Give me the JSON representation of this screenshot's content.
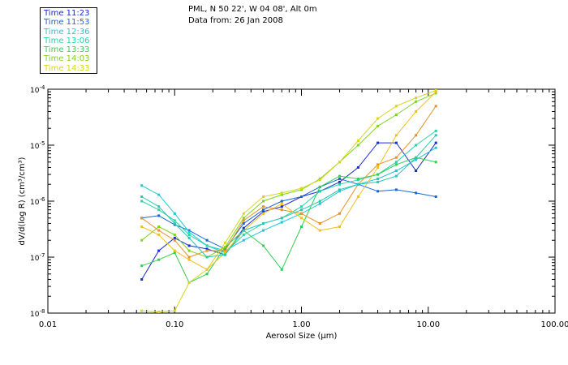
{
  "header": {
    "line1": "PML, N 50 22', W 04 08', Alt 0m",
    "line2": "Data from: 26 Jan 2008"
  },
  "legend": [
    {
      "label": "Time 11:23",
      "color": "#1a2ad4"
    },
    {
      "label": "Time 11:53",
      "color": "#1a66d8"
    },
    {
      "label": "Time 12:36",
      "color": "#1ec8d6"
    },
    {
      "label": "Time 13:06",
      "color": "#22d6a6"
    },
    {
      "label": "Time 13:33",
      "color": "#2fcf52"
    },
    {
      "label": "Time 14:03",
      "color": "#7fd41e"
    },
    {
      "label": "Time 14:33",
      "color": "#d6d61e"
    }
  ],
  "chart_data": {
    "type": "line",
    "x_scale": "log",
    "y_scale": "log",
    "xlabel": "Aerosol Size (μm)",
    "ylabel": "dV/d(log R) (cm³/cm³)",
    "xlim": [
      0.01,
      100
    ],
    "ylim": [
      1e-08,
      0.0001
    ],
    "x_tick_labels": [
      "0.01",
      "0.10",
      "1.00",
      "10.00",
      "100.00"
    ],
    "y_tick_labels": [
      {
        "base": "10",
        "exp": "-8"
      },
      {
        "base": "10",
        "exp": "-7"
      },
      {
        "base": "10",
        "exp": "-6"
      },
      {
        "base": "10",
        "exp": "-5"
      },
      {
        "base": "10",
        "exp": "-4"
      }
    ],
    "x": [
      0.055,
      0.075,
      0.1,
      0.13,
      0.18,
      0.25,
      0.35,
      0.5,
      0.7,
      1.0,
      1.4,
      2.0,
      2.8,
      4.0,
      5.6,
      8.0,
      11.5
    ],
    "series": [
      {
        "name": "Time 11:23",
        "color": "#1a2ad4",
        "values": [
          4e-08,
          1.3e-07,
          2.2e-07,
          1.6e-07,
          1.4e-07,
          1.1e-07,
          3.3e-07,
          6.5e-07,
          8e-07,
          1.2e-06,
          1.5e-06,
          2.2e-06,
          4e-06,
          1.1e-05,
          1.1e-05,
          3.5e-06,
          1.1e-05
        ]
      },
      {
        "name": "Time 11:53",
        "color": "#1a66d8",
        "values": [
          5e-07,
          5.5e-07,
          3.8e-07,
          3e-07,
          2e-07,
          1.4e-07,
          4e-07,
          7e-07,
          1e-06,
          1.2e-06,
          1.8e-06,
          2.5e-06,
          2e-06,
          1.5e-06,
          1.6e-06,
          1.4e-06,
          1.2e-06
        ]
      },
      {
        "name": "Time 12:36",
        "color": "#1ec8d6",
        "values": [
          1.9e-06,
          1.3e-06,
          6e-07,
          2.8e-07,
          1.6e-07,
          1.3e-07,
          2e-07,
          3e-07,
          4.2e-07,
          6e-07,
          9e-07,
          1.5e-06,
          2e-06,
          2.5e-06,
          3.5e-06,
          5.5e-06,
          9e-06
        ]
      },
      {
        "name": "Time 13:06",
        "color": "#22d6a6",
        "values": [
          1e-06,
          7e-07,
          4.5e-07,
          2.5e-07,
          1.6e-07,
          1.2e-07,
          2.5e-07,
          4e-07,
          5e-07,
          8e-07,
          1.5e-06,
          2e-06,
          2.4e-06,
          3e-06,
          5e-06,
          1e-05,
          1.8e-05
        ]
      },
      {
        "name": "Time 13:33",
        "color": "#2fcf52",
        "values": [
          7e-08,
          9e-08,
          1.2e-07,
          3.5e-08,
          5e-08,
          1.5e-07,
          3e-07,
          1.6e-07,
          6e-08,
          3.5e-07,
          1.8e-06,
          2.8e-06,
          2.5e-06,
          3e-06,
          4.5e-06,
          6e-06,
          5e-06
        ]
      },
      {
        "name": "Time 14:03",
        "color": "#7fd41e",
        "values": [
          2e-07,
          3.5e-07,
          2.5e-07,
          1.3e-07,
          1e-07,
          1.5e-07,
          5e-07,
          1e-06,
          1.3e-06,
          1.6e-06,
          2.5e-06,
          5e-06,
          1e-05,
          2.2e-05,
          3.5e-05,
          6e-05,
          8.5e-05
        ]
      },
      {
        "name": "Time 14:33",
        "color": "#d6d61e",
        "values": [
          1.1e-08,
          1.05e-08,
          1.1e-08,
          3.5e-08,
          6e-08,
          1.8e-07,
          6e-07,
          1.2e-06,
          1.4e-06,
          1.7e-06,
          2.4e-06,
          5e-06,
          1.2e-05,
          3e-05,
          5e-05,
          7e-05,
          9.5e-05
        ]
      },
      {
        "name": "",
        "color": "#e8902a",
        "values": [
          5e-07,
          3e-07,
          2e-07,
          1e-07,
          1.3e-07,
          1.3e-07,
          4.5e-07,
          8e-07,
          7e-07,
          6e-07,
          4e-07,
          6e-07,
          2e-06,
          4.5e-06,
          6e-06,
          1.5e-05,
          5e-05
        ]
      },
      {
        "name": "",
        "color": "#f0c020",
        "values": [
          3.5e-07,
          2.5e-07,
          1.3e-07,
          9e-08,
          6e-08,
          1.2e-07,
          3e-07,
          6e-07,
          9e-07,
          5e-07,
          3e-07,
          3.5e-07,
          1.2e-06,
          4e-06,
          1.5e-05,
          4e-05,
          9e-05
        ]
      },
      {
        "name": "",
        "color": "#28c8b0",
        "values": [
          1.2e-06,
          8e-07,
          4e-07,
          2.2e-07,
          1e-07,
          1.1e-07,
          3e-07,
          4e-07,
          5e-07,
          7e-07,
          1e-06,
          1.6e-06,
          2e-06,
          2.2e-06,
          2.8e-06,
          6e-06,
          1.5e-05
        ]
      }
    ]
  }
}
